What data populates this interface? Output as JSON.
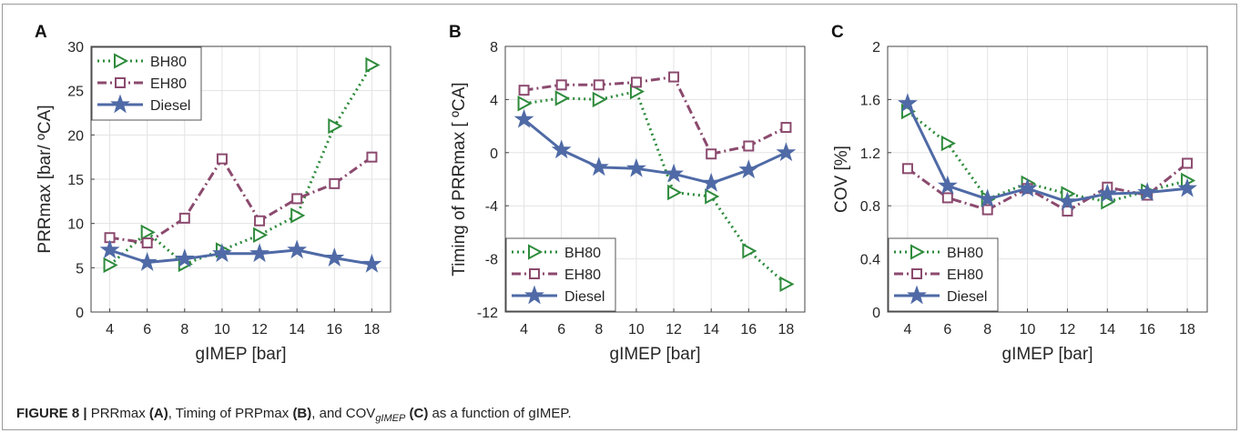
{
  "chart_data": [
    {
      "type": "line",
      "panel_label": "A",
      "xlabel": "gIMEP [bar]",
      "ylabel": "PRRmax [bar/ ºCA]",
      "xlim": [
        3,
        19
      ],
      "ylim": [
        0,
        30
      ],
      "xticks": [
        4,
        6,
        8,
        10,
        12,
        14,
        16,
        18
      ],
      "yticks": [
        0,
        5,
        10,
        15,
        20,
        25,
        30
      ],
      "grid": true,
      "legend_position": "top-left",
      "x": [
        4,
        6,
        8,
        10,
        12,
        14,
        16,
        18
      ],
      "series": [
        {
          "name": "BH80",
          "values": [
            5.3,
            9.0,
            5.4,
            7.0,
            8.7,
            10.9,
            21.0,
            27.9
          ]
        },
        {
          "name": "EH80",
          "values": [
            8.4,
            7.8,
            10.6,
            17.3,
            10.3,
            12.8,
            14.5,
            17.5
          ]
        },
        {
          "name": "Diesel",
          "values": [
            7.0,
            5.6,
            6.0,
            6.6,
            6.6,
            7.0,
            6.1,
            5.4
          ]
        }
      ]
    },
    {
      "type": "line",
      "panel_label": "B",
      "xlabel": "gIMEP [bar]",
      "ylabel": "Timing of PRRmax [ ºCA]",
      "xlim": [
        3,
        19
      ],
      "ylim": [
        -12,
        8
      ],
      "xticks": [
        4,
        6,
        8,
        10,
        12,
        14,
        16,
        18
      ],
      "yticks": [
        -12,
        -8,
        -4,
        0,
        4,
        8
      ],
      "grid": true,
      "legend_position": "bottom-left",
      "x": [
        4,
        6,
        8,
        10,
        12,
        14,
        16,
        18
      ],
      "series": [
        {
          "name": "BH80",
          "values": [
            3.7,
            4.1,
            4.0,
            4.6,
            -3.0,
            -3.3,
            -7.4,
            -9.9
          ]
        },
        {
          "name": "EH80",
          "values": [
            4.7,
            5.1,
            5.1,
            5.3,
            5.7,
            -0.1,
            0.5,
            1.9
          ]
        },
        {
          "name": "Diesel",
          "values": [
            2.5,
            0.2,
            -1.1,
            -1.2,
            -1.6,
            -2.3,
            -1.3,
            0.0
          ]
        }
      ]
    },
    {
      "type": "line",
      "panel_label": "C",
      "xlabel": "gIMEP [bar]",
      "ylabel": "COV [%]",
      "xlim": [
        3,
        19
      ],
      "ylim": [
        0,
        2
      ],
      "xticks": [
        4,
        6,
        8,
        10,
        12,
        14,
        16,
        18
      ],
      "yticks": [
        "0",
        "0.4",
        "0.8",
        "1.2",
        "1.6",
        "2"
      ],
      "grid": true,
      "legend_position": "bottom-left",
      "x": [
        4,
        6,
        8,
        10,
        12,
        14,
        16,
        18
      ],
      "series": [
        {
          "name": "BH80",
          "values": [
            1.51,
            1.27,
            0.85,
            0.97,
            0.89,
            0.83,
            0.91,
            0.99
          ]
        },
        {
          "name": "EH80",
          "values": [
            1.08,
            0.86,
            0.77,
            0.93,
            0.76,
            0.94,
            0.88,
            1.12
          ]
        },
        {
          "name": "Diesel",
          "values": [
            1.57,
            0.95,
            0.85,
            0.93,
            0.83,
            0.89,
            0.9,
            0.93
          ]
        }
      ]
    }
  ],
  "series_colors": {
    "BH80": "#2e8b3c",
    "EH80": "#8b4a6e",
    "Diesel": "#4f6aa6"
  },
  "caption": {
    "prefix": "FIGURE 8 |",
    "t1": " PRRmax ",
    "l1": "(A)",
    "t2": ", Timing of PRPmax ",
    "l2": "(B)",
    "t3": ", and COV",
    "sub": "gIMEP",
    "t4": " ",
    "l3": "(C)",
    "t5": " as a function of gIMEP."
  }
}
